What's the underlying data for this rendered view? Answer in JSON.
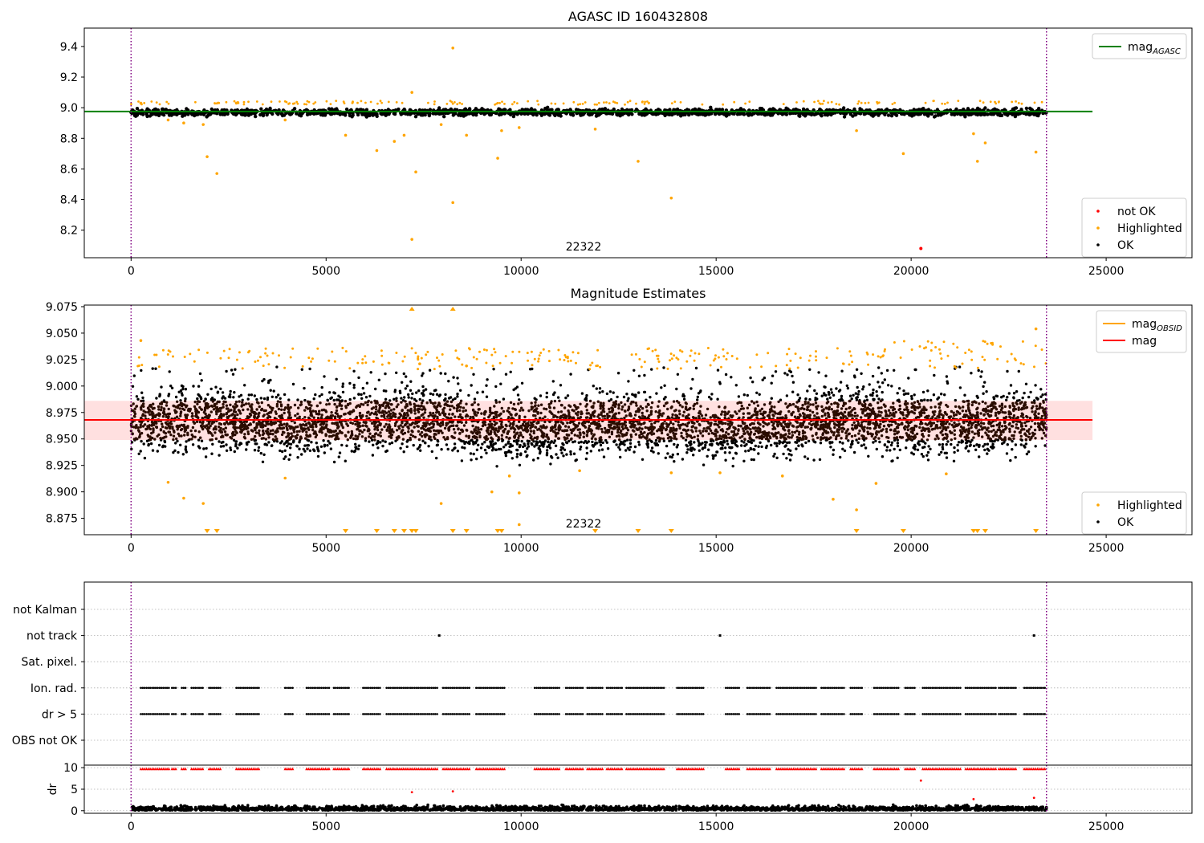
{
  "chart_data": [
    {
      "type": "scatter",
      "title": "AGASC ID 160432808",
      "xlim": [
        -1200,
        27200
      ],
      "ylim": [
        8.02,
        9.52
      ],
      "xticks": [
        "0",
        "5000",
        "10000",
        "15000",
        "20000",
        "25000"
      ],
      "yticks": [
        "8.2",
        "8.4",
        "8.6",
        "8.8",
        "9.0",
        "9.2",
        "9.4"
      ],
      "obsid_label": "22322",
      "obsid_label_x": 11600,
      "obsid_bounds": [
        0,
        23470
      ],
      "mag_agasc": 8.975,
      "mag_agasc_xrange": [
        -1200,
        24650
      ],
      "legend_upper": {
        "placement": "upper-right",
        "entries": [
          {
            "label": "mag",
            "sub": "AGASC",
            "color": "#008000"
          }
        ]
      },
      "legend_lower": {
        "placement": "lower-right",
        "entries": [
          {
            "label": "not OK",
            "color": "#ff0000"
          },
          {
            "label": "Highlighted",
            "color": "#ffa500"
          },
          {
            "label": "OK",
            "color": "#000000"
          }
        ]
      },
      "ok_band": {
        "center": 8.97,
        "spread": 0.02,
        "x_range": [
          0,
          23470
        ]
      },
      "highlighted_points": [
        [
          250,
          9.03
        ],
        [
          950,
          8.92
        ],
        [
          1350,
          8.9
        ],
        [
          1850,
          8.89
        ],
        [
          1950,
          8.68
        ],
        [
          2200,
          8.57
        ],
        [
          2700,
          9.03
        ],
        [
          3950,
          8.92
        ],
        [
          5500,
          8.82
        ],
        [
          6300,
          8.72
        ],
        [
          6750,
          8.78
        ],
        [
          7000,
          8.82
        ],
        [
          7200,
          8.14
        ],
        [
          7200,
          9.1
        ],
        [
          7300,
          8.58
        ],
        [
          7950,
          8.89
        ],
        [
          8250,
          9.39
        ],
        [
          8250,
          8.38
        ],
        [
          8600,
          8.82
        ],
        [
          9400,
          8.67
        ],
        [
          9500,
          8.85
        ],
        [
          9950,
          8.87
        ],
        [
          11900,
          8.86
        ],
        [
          13000,
          8.65
        ],
        [
          13850,
          8.41
        ],
        [
          18600,
          8.85
        ],
        [
          19800,
          8.7
        ],
        [
          21600,
          8.83
        ],
        [
          21700,
          8.65
        ],
        [
          21900,
          8.77
        ],
        [
          23200,
          8.71
        ]
      ],
      "not_ok_points": [
        [
          20250,
          8.08
        ]
      ]
    },
    {
      "type": "scatter",
      "title": "Magnitude Estimates",
      "xlim": [
        -1200,
        27200
      ],
      "ylim": [
        8.8595,
        9.0765
      ],
      "xticks": [
        "0",
        "5000",
        "10000",
        "15000",
        "20000",
        "25000"
      ],
      "yticks": [
        "8.875",
        "8.900",
        "8.925",
        "8.950",
        "8.975",
        "9.000",
        "9.025",
        "9.050",
        "9.075"
      ],
      "obsid_label": "22322",
      "obsid_label_x": 11600,
      "obsid_bounds": [
        0,
        23470
      ],
      "mag_line": 8.968,
      "mag_band": [
        8.949,
        8.986
      ],
      "mag_xrange": [
        -1200,
        24650
      ],
      "legend_upper": {
        "placement": "upper-right",
        "entries": [
          {
            "label": "mag",
            "sub": "OBSID",
            "color": "#ffa500"
          },
          {
            "label": "mag",
            "color": "#ff0000"
          }
        ]
      },
      "legend_lower": {
        "placement": "lower-right",
        "entries": [
          {
            "label": "Highlighted",
            "color": "#ffa500"
          },
          {
            "label": "OK",
            "color": "#000000"
          }
        ]
      },
      "highlighted_points": [
        [
          250,
          9.043
        ],
        [
          950,
          8.909
        ],
        [
          1350,
          8.894
        ],
        [
          1850,
          8.889
        ],
        [
          3950,
          8.913
        ],
        [
          7400,
          9.021
        ],
        [
          7950,
          8.889
        ],
        [
          8600,
          9.019
        ],
        [
          9250,
          8.9
        ],
        [
          9700,
          8.915
        ],
        [
          9950,
          8.899
        ],
        [
          9950,
          8.869
        ],
        [
          11500,
          8.92
        ],
        [
          13850,
          8.918
        ],
        [
          15100,
          8.918
        ],
        [
          16700,
          8.915
        ],
        [
          18000,
          8.893
        ],
        [
          18600,
          8.883
        ],
        [
          19100,
          8.908
        ],
        [
          20900,
          8.917
        ],
        [
          23200,
          9.054
        ]
      ],
      "clipped_top_x": [
        7200,
        8250
      ],
      "clipped_bottom_x": [
        1950,
        2200,
        5500,
        6300,
        6750,
        7000,
        7200,
        7300,
        8250,
        8600,
        9400,
        9500,
        11900,
        13000,
        13850,
        18600,
        19800,
        21600,
        21700,
        21900,
        23200
      ]
    },
    {
      "type": "scatter",
      "xlim": [
        -1200,
        27200
      ],
      "xticks": [
        "0",
        "5000",
        "10000",
        "15000",
        "20000",
        "25000"
      ],
      "flag_rows": [
        "not Kalman",
        "not track",
        "Sat. pixel.",
        "Ion. rad.",
        "dr > 5",
        "OBS not OK"
      ],
      "obsid_bounds": [
        0,
        23470
      ],
      "not_track_x": [
        7900,
        15100,
        23150
      ],
      "dr_flag_segments": [
        [
          250,
          1000
        ],
        [
          1050,
          1150
        ],
        [
          1300,
          1400
        ],
        [
          1550,
          1850
        ],
        [
          2000,
          2300
        ],
        [
          2700,
          3300
        ],
        [
          3950,
          4150
        ],
        [
          4500,
          5100
        ],
        [
          5200,
          5600
        ],
        [
          5950,
          6400
        ],
        [
          6550,
          7850
        ],
        [
          8000,
          8700
        ],
        [
          8850,
          9600
        ],
        [
          10350,
          11000
        ],
        [
          11150,
          11600
        ],
        [
          11700,
          12100
        ],
        [
          12200,
          12600
        ],
        [
          12700,
          13700
        ],
        [
          14000,
          14700
        ],
        [
          15250,
          15600
        ],
        [
          15800,
          16400
        ],
        [
          16550,
          17600
        ],
        [
          17700,
          18300
        ],
        [
          18450,
          18750
        ],
        [
          19050,
          19700
        ],
        [
          19850,
          20100
        ],
        [
          20300,
          21300
        ],
        [
          21400,
          22200
        ],
        [
          22250,
          22700
        ],
        [
          22900,
          23470
        ]
      ],
      "ylabel": "dr",
      "dr_ylim": [
        -0.6,
        10.6
      ],
      "dr_yticks": [
        "0",
        "5",
        "10"
      ],
      "dr_outliers": [
        [
          7200,
          4.3
        ],
        [
          8250,
          4.5
        ],
        [
          20250,
          7.0
        ],
        [
          21600,
          2.7
        ],
        [
          23150,
          3.0
        ]
      ]
    }
  ]
}
